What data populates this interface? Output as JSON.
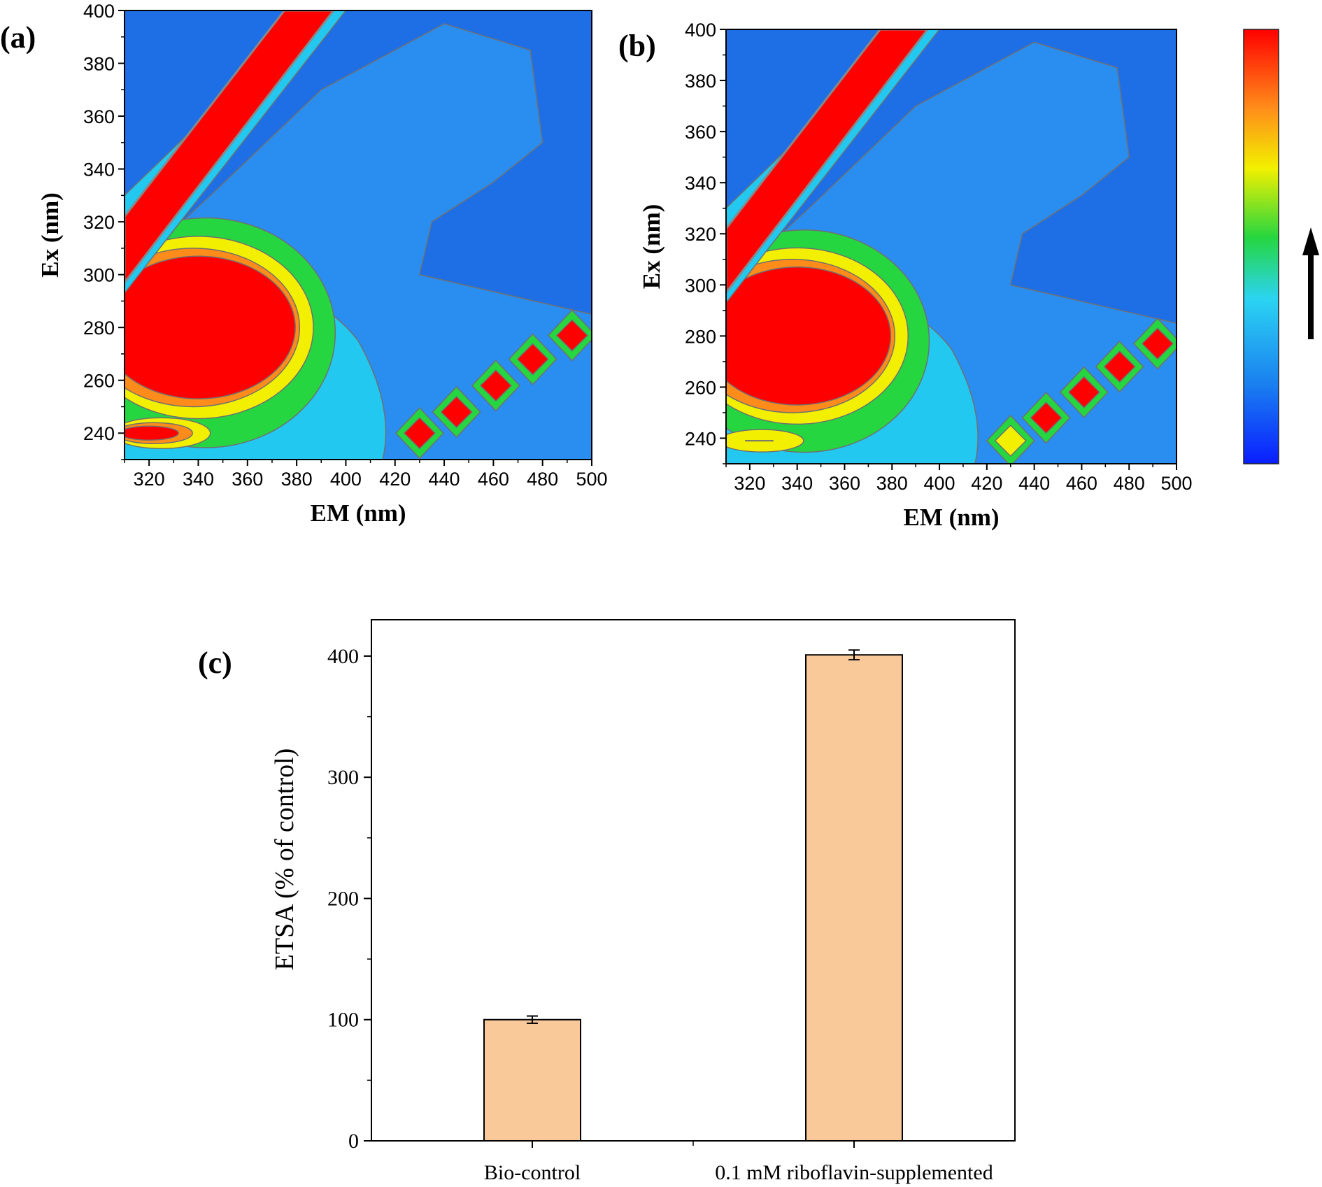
{
  "panels": {
    "a": {
      "letter": "(a)"
    },
    "b": {
      "letter": "(b)"
    },
    "c": {
      "letter": "(c)"
    }
  },
  "colors": {
    "background_blue": "#1e6fe6",
    "mid_blue": "#2a8df0",
    "cyan": "#22c8f0",
    "green": "#25d640",
    "yellow": "#f2f000",
    "orange": "#ff8c1a",
    "red": "#ff0000",
    "contour_line": "#707070",
    "bar_fill": "#f9c99a"
  },
  "chart_data": [
    {
      "type": "heatmap",
      "panel": "(a)",
      "xlabel": "EM (nm)",
      "ylabel": "Ex (nm)",
      "xlim": [
        310,
        500
      ],
      "ylim": [
        230,
        400
      ],
      "x_ticks": [
        "320",
        "340",
        "360",
        "380",
        "400",
        "420",
        "440",
        "460",
        "480",
        "500"
      ],
      "y_ticks": [
        "240",
        "260",
        "280",
        "300",
        "320",
        "340",
        "360",
        "380",
        "400"
      ],
      "peaks": [
        {
          "em": 340,
          "ex": 280,
          "level": "max"
        },
        {
          "em": 320,
          "ex": 240,
          "level": "max"
        },
        {
          "em": 430,
          "ex": 240,
          "level": "max"
        },
        {
          "em": 445,
          "ex": 248,
          "level": "max"
        },
        {
          "em": 461,
          "ex": 258,
          "level": "max"
        },
        {
          "em": 476,
          "ex": 268,
          "level": "max"
        },
        {
          "em": 492,
          "ex": 277,
          "level": "max"
        }
      ]
    },
    {
      "type": "heatmap",
      "panel": "(b)",
      "xlabel": "EM (nm)",
      "ylabel": "Ex (nm)",
      "xlim": [
        310,
        500
      ],
      "ylim": [
        230,
        400
      ],
      "x_ticks": [
        "320",
        "340",
        "360",
        "380",
        "400",
        "420",
        "440",
        "460",
        "480",
        "500"
      ],
      "y_ticks": [
        "240",
        "260",
        "280",
        "300",
        "320",
        "340",
        "360",
        "380",
        "400"
      ],
      "peaks": [
        {
          "em": 340,
          "ex": 280,
          "level": "max"
        },
        {
          "em": 430,
          "ex": 239,
          "level": "high"
        },
        {
          "em": 445,
          "ex": 248,
          "level": "max"
        },
        {
          "em": 461,
          "ex": 258,
          "level": "max"
        },
        {
          "em": 476,
          "ex": 268,
          "level": "max"
        },
        {
          "em": 492,
          "ex": 277,
          "level": "max"
        }
      ]
    },
    {
      "type": "bar",
      "panel": "(c)",
      "categories": [
        "Bio-control",
        "0.1 mM riboflavin-supplemented"
      ],
      "values": [
        100,
        401
      ],
      "errors": [
        3,
        4
      ],
      "ylabel": "ETSA (% of control)",
      "ylim": [
        0,
        430
      ],
      "y_ticks": [
        0,
        100,
        200,
        300,
        400
      ],
      "xlabel": ""
    }
  ]
}
